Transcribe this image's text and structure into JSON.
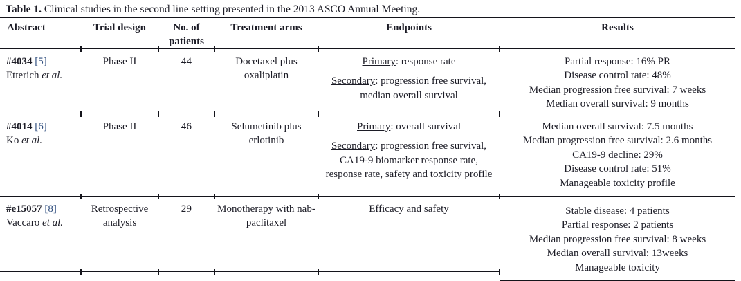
{
  "caption": {
    "label": "Table 1.",
    "text": " Clinical studies in the second line setting presented in the 2013 ASCO Annual Meeting."
  },
  "colors": {
    "text": "#1c1c26",
    "reference_link": "#2e4d7d",
    "rule": "#14141b"
  },
  "columns": [
    "Abstract",
    "Trial design",
    "No. of patients",
    "Treatment arms",
    "Endpoints",
    "Results"
  ],
  "rows": [
    {
      "abstract": {
        "id": "#4034",
        "ref": "[5]",
        "authors": "Etterich ",
        "etal": "et al."
      },
      "trial_design": "Phase II",
      "patients": "44",
      "treatment": "Docetaxel plus oxaliplatin",
      "endpoints": [
        {
          "label": "Primary",
          "rest": ": response rate"
        },
        {
          "label": "Secondary",
          "rest": ": progression free survival, median overall survival"
        }
      ],
      "results": [
        "Partial response: 16% PR",
        "Disease control rate: 48%",
        "Median progression free survival: 7 weeks",
        "Median overall survival: 9 months"
      ]
    },
    {
      "abstract": {
        "id": "#4014",
        "ref": "[6]",
        "authors": "Ko ",
        "etal": "et al."
      },
      "trial_design": "Phase II",
      "patients": "46",
      "treatment": "Selumetinib plus erlotinib",
      "endpoints": [
        {
          "label": "Primary",
          "rest": ": overall survival"
        },
        {
          "label": "Secondary",
          "rest": ": progression free survival, CA19-9 biomarker response rate, response rate, safety and toxicity profile"
        }
      ],
      "results": [
        "Median overall survival: 7.5 months",
        "Median progression free survival: 2.6 months",
        "CA19-9 decline: 29%",
        "Disease control rate: 51%",
        "Manageable toxicity profile"
      ]
    },
    {
      "abstract": {
        "id": "#e15057",
        "ref": "[8]",
        "authors": "Vaccaro ",
        "etal": "et al."
      },
      "trial_design": "Retrospective analysis",
      "patients": "29",
      "treatment": "Monotherapy with nab-paclitaxel",
      "endpoints": [
        {
          "label": "",
          "rest": "Efficacy and safety"
        }
      ],
      "results": [
        "Stable disease: 4 patients",
        "Partial response: 2 patients",
        "Median progression free survival: 8 weeks",
        "Median overall survival: 13weeks",
        "Manageable toxicity"
      ]
    }
  ]
}
